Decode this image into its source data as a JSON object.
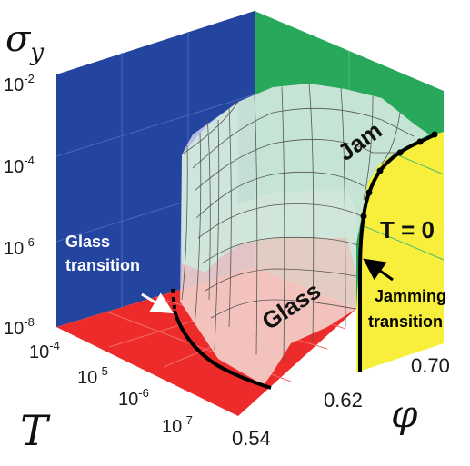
{
  "chart_data": {
    "type": "surface-3d",
    "axes": {
      "y_symbol": "σ",
      "y_subscript": "y",
      "x_symbol": "T",
      "z_symbol": "φ",
      "y_ticks": [
        {
          "base": "10",
          "exp": "-2"
        },
        {
          "base": "10",
          "exp": "-4"
        },
        {
          "base": "10",
          "exp": "-6"
        },
        {
          "base": "10",
          "exp": "-8"
        }
      ],
      "x_ticks": [
        {
          "base": "10",
          "exp": "-4"
        },
        {
          "base": "10",
          "exp": "-5"
        },
        {
          "base": "10",
          "exp": "-6"
        },
        {
          "base": "10",
          "exp": "-7"
        }
      ],
      "z_ticks": [
        "0.54",
        "0.62",
        "0.70"
      ],
      "y_scale": "log",
      "x_scale": "log"
    },
    "regions": {
      "glass": "Glass",
      "jam": "Jam",
      "t_zero": "T = 0"
    },
    "annotations": {
      "glass_transition": [
        "Glass",
        "transition"
      ],
      "jamming_transition": [
        "Jamming",
        "transition"
      ]
    },
    "colors": {
      "back_wall": "#23449f",
      "right_wall": "#27a85a",
      "floor": "#ee2b2b",
      "t0_plane": "#f7ef3c",
      "surface_jam": "#cfe8dc",
      "surface_glass": "#f3cfca",
      "surface_side": "#c8c8ea",
      "curve": "#000000"
    }
  }
}
